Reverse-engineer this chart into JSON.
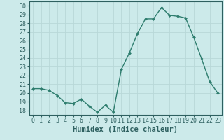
{
  "x": [
    0,
    1,
    2,
    3,
    4,
    5,
    6,
    7,
    8,
    9,
    10,
    11,
    12,
    13,
    14,
    15,
    16,
    17,
    18,
    19,
    20,
    21,
    22,
    23
  ],
  "y": [
    20.5,
    20.5,
    20.3,
    19.7,
    18.9,
    18.8,
    19.3,
    18.5,
    17.8,
    18.6,
    17.8,
    22.7,
    24.6,
    26.8,
    28.5,
    28.5,
    29.8,
    28.9,
    28.8,
    28.6,
    26.4,
    23.9,
    21.3,
    20.0
  ],
  "line_color": "#2e7d6e",
  "marker": "D",
  "marker_size": 2.0,
  "bg_color": "#cceaea",
  "grid_color": "#b8d8d8",
  "xlabel": "Humidex (Indice chaleur)",
  "xlim": [
    -0.5,
    23.5
  ],
  "ylim": [
    17.5,
    30.5
  ],
  "yticks": [
    18,
    19,
    20,
    21,
    22,
    23,
    24,
    25,
    26,
    27,
    28,
    29,
    30
  ],
  "xticks": [
    0,
    1,
    2,
    3,
    4,
    5,
    6,
    7,
    8,
    9,
    10,
    11,
    12,
    13,
    14,
    15,
    16,
    17,
    18,
    19,
    20,
    21,
    22,
    23
  ],
  "tick_color": "#2e6060",
  "spine_color": "#2e6060",
  "xlabel_fontsize": 7.5,
  "tick_fontsize": 6.0,
  "line_width": 1.0
}
